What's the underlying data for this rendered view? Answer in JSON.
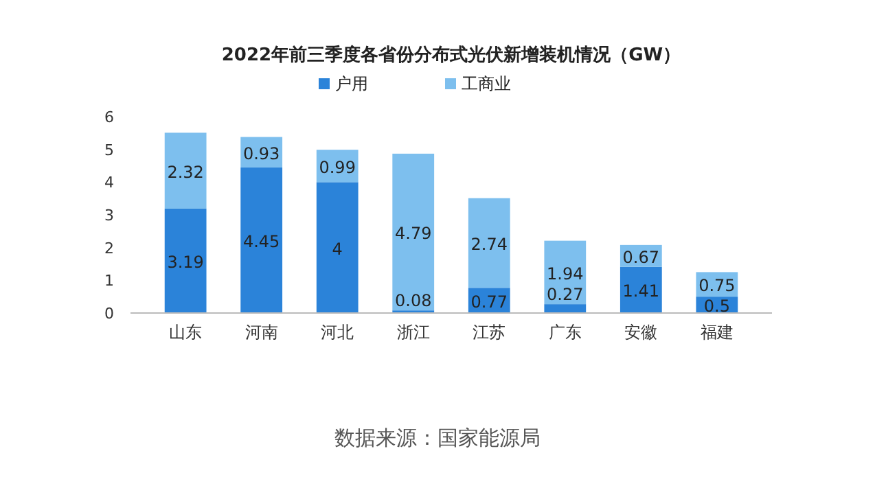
{
  "chart_data": {
    "type": "bar",
    "title": "2022年前三季度各省份分布式光伏新增装机情况（GW）",
    "categories": [
      "山东",
      "河南",
      "河北",
      "浙江",
      "江苏",
      "广东",
      "安徽",
      "福建"
    ],
    "stacked": true,
    "series": [
      {
        "name": "户用",
        "color": "#2b83d9",
        "values": [
          3.19,
          4.45,
          4,
          0.08,
          0.77,
          0.27,
          1.41,
          0.5
        ]
      },
      {
        "name": "工商业",
        "color": "#7dbfee",
        "values": [
          2.32,
          0.93,
          0.99,
          4.79,
          2.74,
          1.94,
          0.67,
          0.75
        ]
      }
    ],
    "ylim": [
      0,
      6
    ],
    "yticks": [
      0,
      1,
      2,
      3,
      4,
      5,
      6
    ],
    "data_labels": true,
    "legend": "top",
    "annotations": [
      "数据来源：国家能源局"
    ]
  }
}
